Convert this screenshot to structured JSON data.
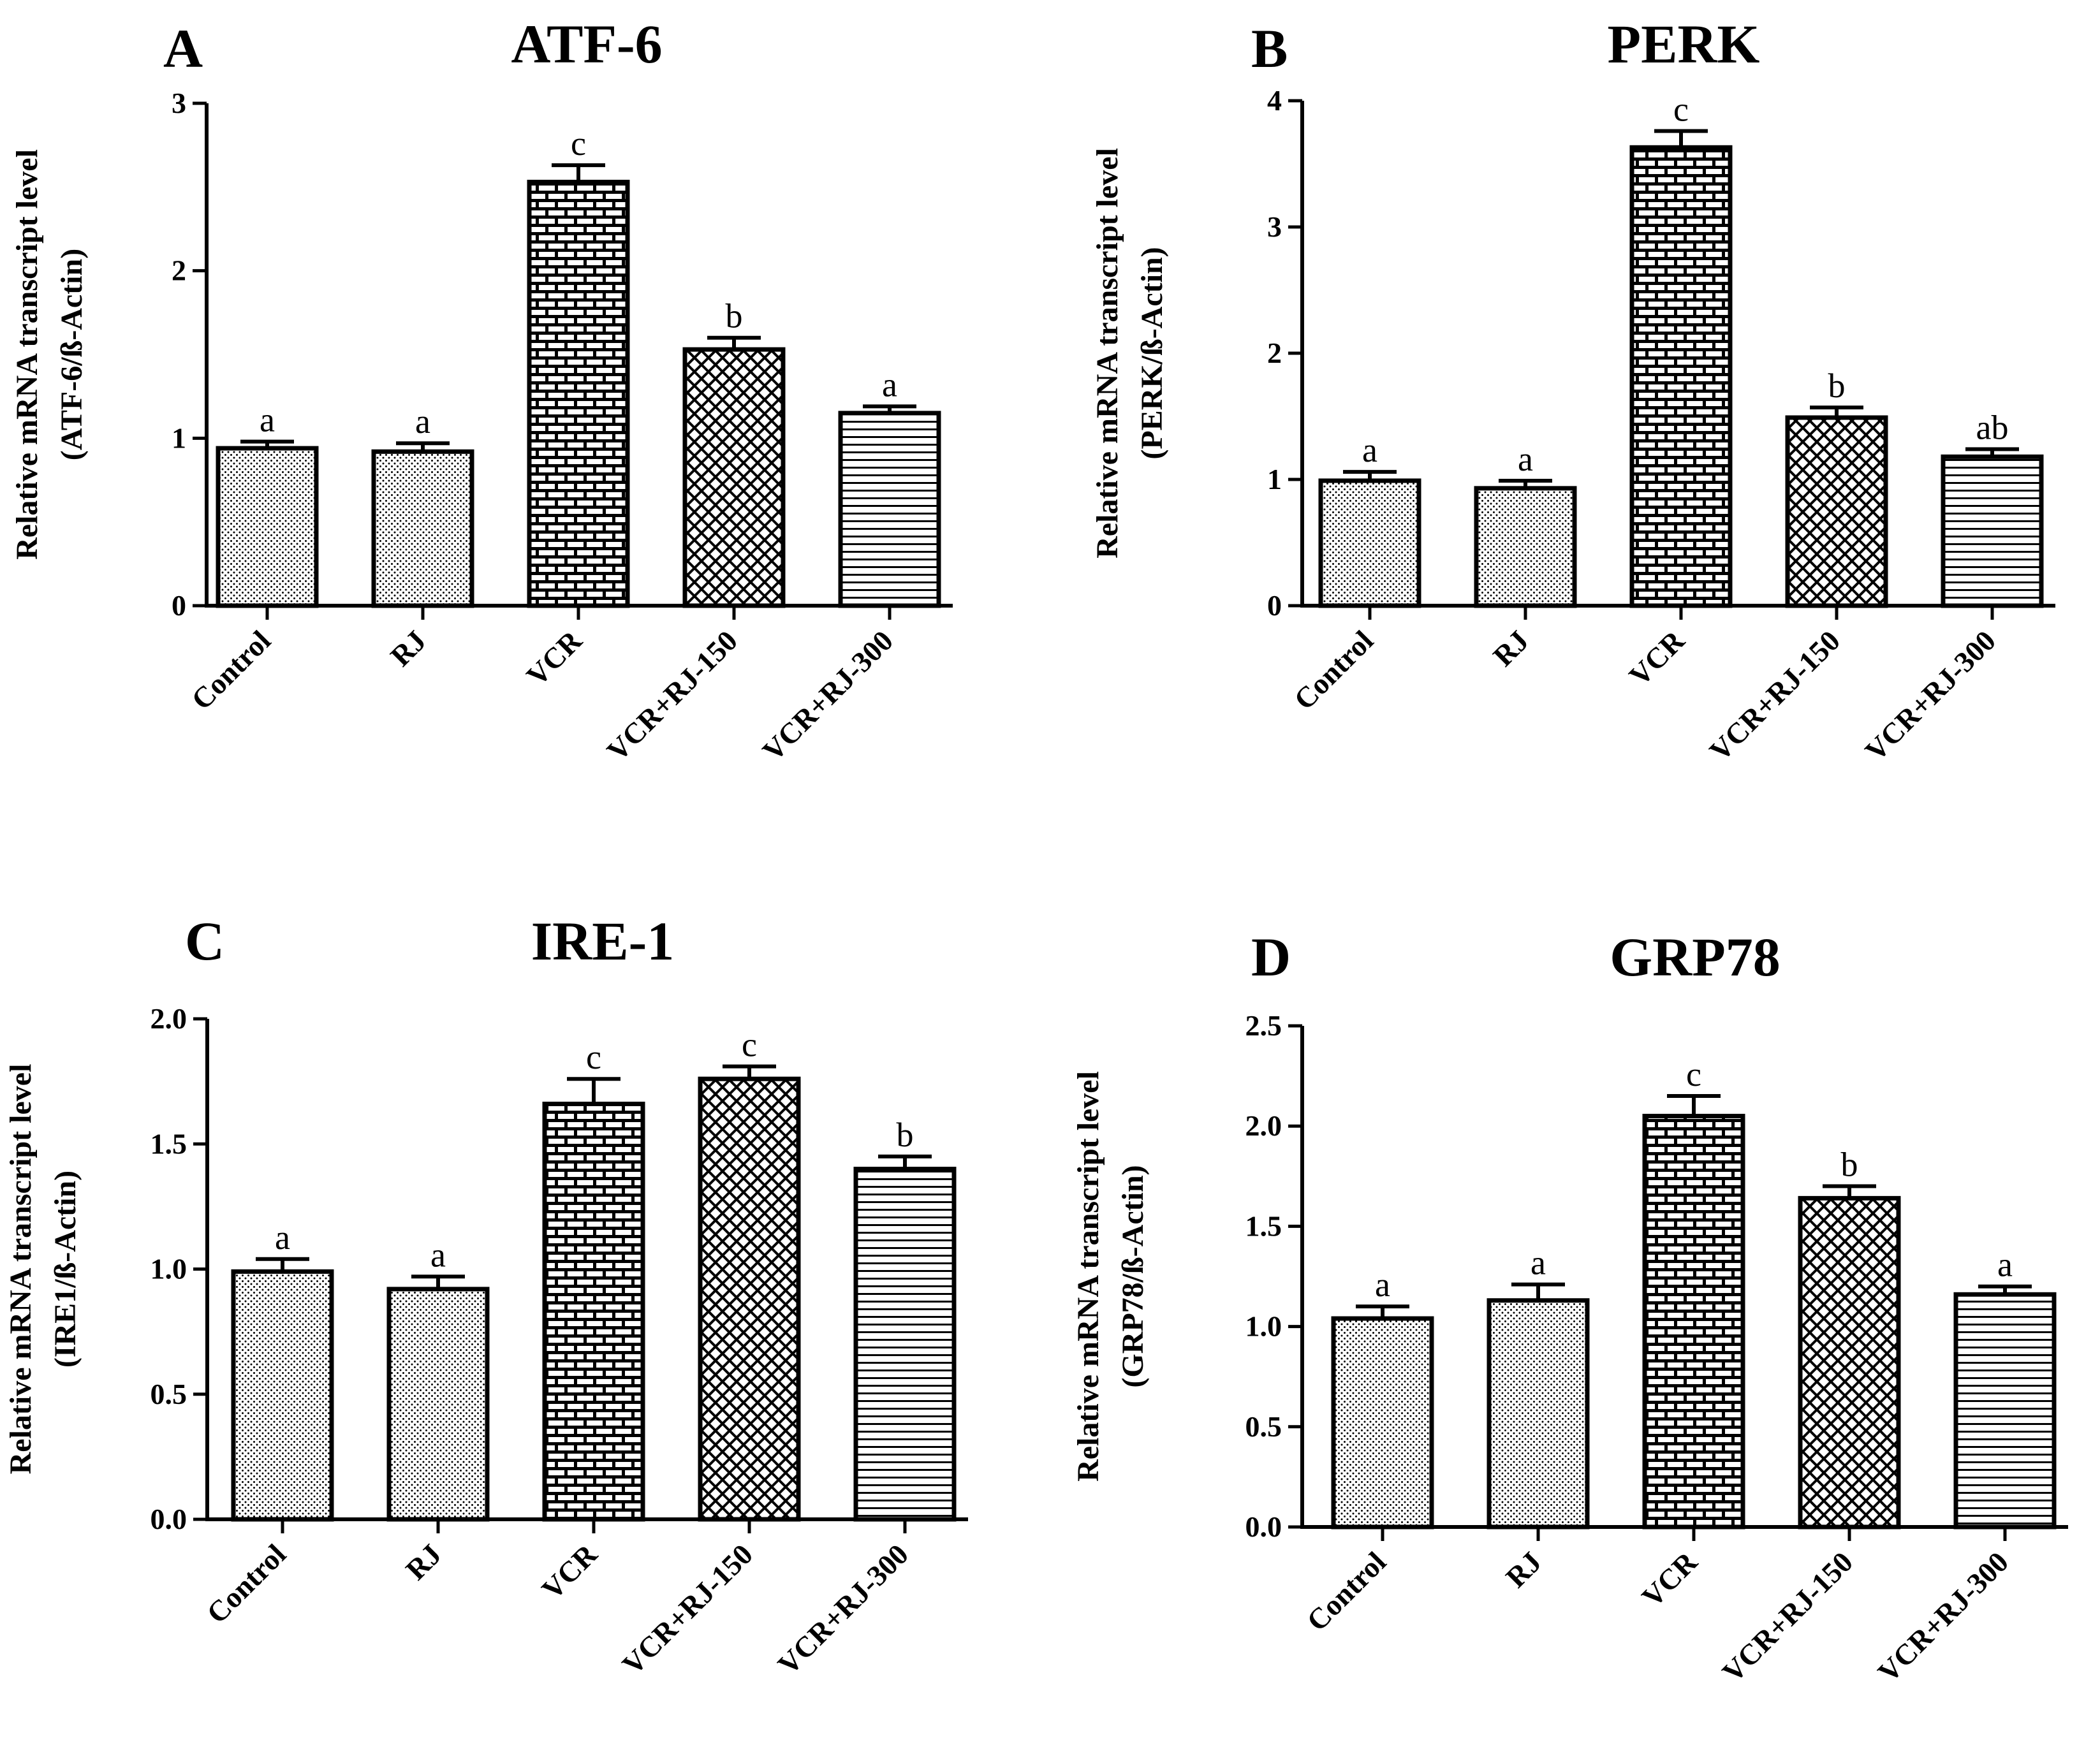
{
  "page": {
    "background": "#ffffff",
    "ink": "#000000"
  },
  "chart_data": [
    {
      "type": "bar",
      "panel": "A",
      "title": "ATF-6",
      "ylabel_line1": "Relative mRNA transcript level",
      "ylabel_line2": "(ATF-6/ß-Actin)",
      "xlabel": "",
      "categories": [
        "Control",
        "RJ",
        "VCR",
        "VCR+RJ-150",
        "VCR+RJ-300"
      ],
      "values": [
        0.94,
        0.92,
        2.53,
        1.53,
        1.15
      ],
      "errors": [
        0.04,
        0.05,
        0.1,
        0.07,
        0.04
      ],
      "significance": [
        "a",
        "a",
        "c",
        "b",
        "a"
      ],
      "patterns": [
        "dots",
        "dots",
        "bricks",
        "crosshatch",
        "hlines"
      ],
      "ylim": [
        0,
        3
      ],
      "yticks": [
        0,
        1,
        2,
        3
      ],
      "ytick_labels": [
        "0",
        "1",
        "2",
        "3"
      ],
      "grid": false,
      "legend": "none"
    },
    {
      "type": "bar",
      "panel": "B",
      "title": "PERK",
      "ylabel_line1": "Relative mRNA transcript level",
      "ylabel_line2": "(PERK/ß-Actin)",
      "xlabel": "",
      "categories": [
        "Control",
        "RJ",
        "VCR",
        "VCR+RJ-150",
        "VCR+RJ-300"
      ],
      "values": [
        0.99,
        0.93,
        3.63,
        1.49,
        1.18
      ],
      "errors": [
        0.07,
        0.06,
        0.13,
        0.08,
        0.06
      ],
      "significance": [
        "a",
        "a",
        "c",
        "b",
        "ab"
      ],
      "patterns": [
        "dots",
        "dots",
        "bricks",
        "crosshatch",
        "hlines"
      ],
      "ylim": [
        0,
        4
      ],
      "yticks": [
        0,
        1,
        2,
        3,
        4
      ],
      "ytick_labels": [
        "0",
        "1",
        "2",
        "3",
        "4"
      ],
      "grid": false,
      "legend": "none"
    },
    {
      "type": "bar",
      "panel": "C",
      "title": "IRE-1",
      "ylabel_line1": "Relative mRNA transcript level",
      "ylabel_line2": "(IRE1/ß-Actin)",
      "xlabel": "",
      "categories": [
        "Control",
        "RJ",
        "VCR",
        "VCR+RJ-150",
        "VCR+RJ-300"
      ],
      "values": [
        0.99,
        0.92,
        1.66,
        1.76,
        1.4
      ],
      "errors": [
        0.05,
        0.05,
        0.1,
        0.05,
        0.05
      ],
      "significance": [
        "a",
        "a",
        "c",
        "c",
        "b"
      ],
      "patterns": [
        "dots",
        "dots",
        "bricks",
        "crosshatch",
        "hlines"
      ],
      "ylim": [
        0,
        2
      ],
      "yticks": [
        0,
        0.5,
        1,
        1.5,
        2
      ],
      "ytick_labels": [
        "0.0",
        "0.5",
        "1.0",
        "1.5",
        "2.0"
      ],
      "grid": false,
      "legend": "none"
    },
    {
      "type": "bar",
      "panel": "D",
      "title": "GRP78",
      "ylabel_line1": "Relative mRNA transcript level",
      "ylabel_line2": "(GRP78/ß-Actin)",
      "xlabel": "",
      "categories": [
        "Control",
        "RJ",
        "VCR",
        "VCR+RJ-150",
        "VCR+RJ-300"
      ],
      "values": [
        1.04,
        1.13,
        2.05,
        1.64,
        1.16
      ],
      "errors": [
        0.06,
        0.08,
        0.1,
        0.06,
        0.04
      ],
      "significance": [
        "a",
        "a",
        "c",
        "b",
        "a"
      ],
      "patterns": [
        "dots",
        "dots",
        "bricks",
        "crosshatch",
        "hlines"
      ],
      "ylim": [
        0,
        2.5
      ],
      "yticks": [
        0,
        0.5,
        1,
        1.5,
        2,
        2.5
      ],
      "ytick_labels": [
        "0.0",
        "0.5",
        "1.0",
        "1.5",
        "2.0",
        "2.5"
      ],
      "grid": false,
      "legend": "none"
    }
  ]
}
